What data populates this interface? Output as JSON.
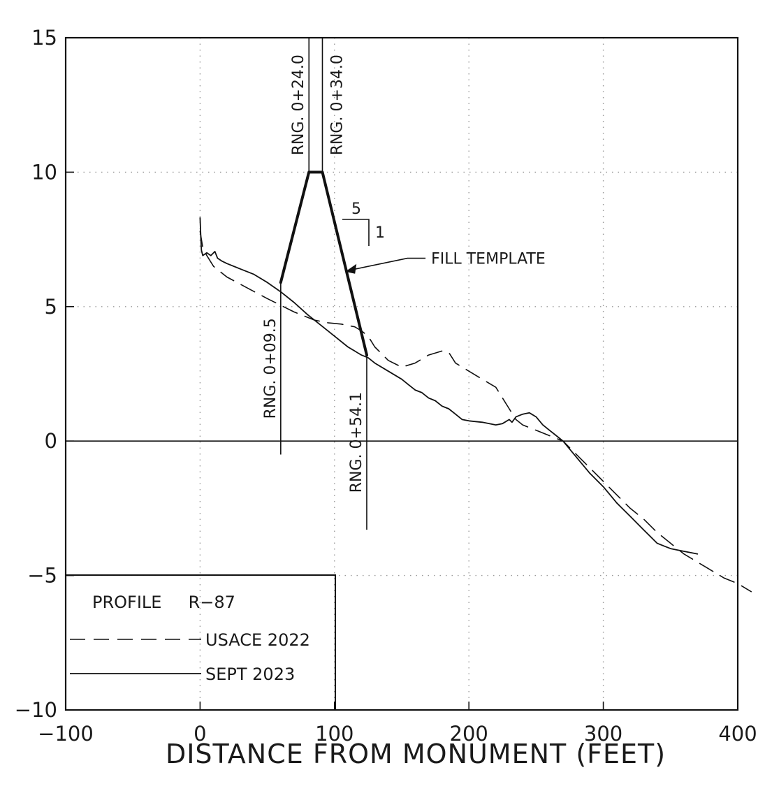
{
  "chart_data": {
    "type": "line",
    "title": "",
    "xlabel": "DISTANCE FROM MONUMENT (FEET)",
    "ylabel": "",
    "xlim": [
      -100,
      400
    ],
    "ylim": [
      -10,
      15
    ],
    "x_ticks": [
      -100,
      0,
      100,
      200,
      300,
      400
    ],
    "y_ticks": [
      -10,
      -5,
      0,
      5,
      10,
      15
    ],
    "x_tick_labels": [
      "−100",
      "0",
      "100",
      "200",
      "300",
      "400"
    ],
    "y_tick_labels": [
      "−10",
      "−5",
      "0",
      "5",
      "10",
      "15"
    ],
    "grid": "dotted",
    "legend": {
      "placement": "bottom-left",
      "title": "PROFILE     R−87",
      "entries": [
        "USACE 2022",
        "SEPT 2023"
      ]
    },
    "series": [
      {
        "name": "USACE 2022",
        "style": "dashed",
        "x": [
          0,
          2,
          5,
          10,
          20,
          35,
          50,
          70,
          85,
          95,
          105,
          115,
          120,
          125,
          130,
          140,
          150,
          160,
          170,
          180,
          185,
          190,
          200,
          210,
          220,
          225,
          230,
          235,
          240,
          250,
          260,
          270,
          280,
          290,
          300,
          310,
          320,
          330,
          340,
          350,
          360,
          370,
          380,
          390,
          400,
          410
        ],
        "y": [
          7.8,
          7.2,
          6.9,
          6.5,
          6.1,
          5.7,
          5.3,
          4.8,
          4.5,
          4.4,
          4.35,
          4.25,
          4.1,
          3.9,
          3.5,
          3.0,
          2.75,
          2.9,
          3.2,
          3.35,
          3.3,
          2.9,
          2.6,
          2.3,
          2.0,
          1.6,
          1.2,
          0.8,
          0.6,
          0.4,
          0.2,
          0.0,
          -0.5,
          -1.0,
          -1.5,
          -2.0,
          -2.5,
          -2.9,
          -3.4,
          -3.8,
          -4.2,
          -4.5,
          -4.8,
          -5.1,
          -5.3,
          -5.6
        ]
      },
      {
        "name": "SEPT 2023",
        "style": "solid",
        "x": [
          0,
          0.5,
          1,
          2,
          5,
          8,
          11,
          13,
          16,
          20,
          30,
          40,
          50,
          60,
          70,
          80,
          90,
          100,
          110,
          120,
          125,
          130,
          140,
          150,
          155,
          160,
          165,
          170,
          175,
          180,
          185,
          190,
          195,
          200,
          210,
          220,
          225,
          230,
          232,
          235,
          240,
          245,
          250,
          255,
          260,
          265,
          270,
          280,
          290,
          300,
          310,
          320,
          330,
          340,
          345,
          350,
          360,
          365,
          370
        ],
        "y": [
          8.3,
          7.6,
          7.1,
          6.9,
          7.0,
          6.9,
          7.05,
          6.8,
          6.7,
          6.6,
          6.4,
          6.2,
          5.9,
          5.55,
          5.15,
          4.7,
          4.3,
          3.9,
          3.5,
          3.2,
          3.1,
          2.9,
          2.6,
          2.3,
          2.1,
          1.9,
          1.8,
          1.6,
          1.5,
          1.3,
          1.2,
          1.0,
          0.8,
          0.75,
          0.7,
          0.6,
          0.65,
          0.8,
          0.7,
          0.9,
          1.0,
          1.05,
          0.9,
          0.6,
          0.4,
          0.2,
          0.0,
          -0.6,
          -1.2,
          -1.7,
          -2.3,
          -2.8,
          -3.3,
          -3.8,
          -3.9,
          -4.0,
          -4.1,
          -4.15,
          -4.2
        ]
      },
      {
        "name": "FILL TEMPLATE",
        "style": "thick",
        "x": [
          60,
          81,
          91,
          124
        ],
        "y": [
          5.9,
          10.0,
          10.0,
          3.2
        ]
      }
    ],
    "range_markers": [
      {
        "label": "RNG. 0+24.0",
        "x": 81,
        "y_from": 10,
        "y_to": 15,
        "text_side": "left"
      },
      {
        "label": "RNG. 0+34.0",
        "x": 91,
        "y_from": 10,
        "y_to": 15,
        "text_side": "right"
      },
      {
        "label": "RNG. 0+09.5",
        "x": 60,
        "y_from": 5.9,
        "y_to": -0.5,
        "text_side": "left"
      },
      {
        "label": "RNG. 0+54.1",
        "x": 124,
        "y_from": 3.2,
        "y_to": -3.3,
        "text_side": "left"
      }
    ],
    "annotations": [
      {
        "label": "FILL TEMPLATE",
        "arrow_to": [
          108,
          6.3
        ],
        "text_at": [
          175,
          6.8
        ]
      },
      {
        "label": "5",
        "kind": "slope-run"
      },
      {
        "label": "1",
        "kind": "slope-rise"
      }
    ]
  }
}
